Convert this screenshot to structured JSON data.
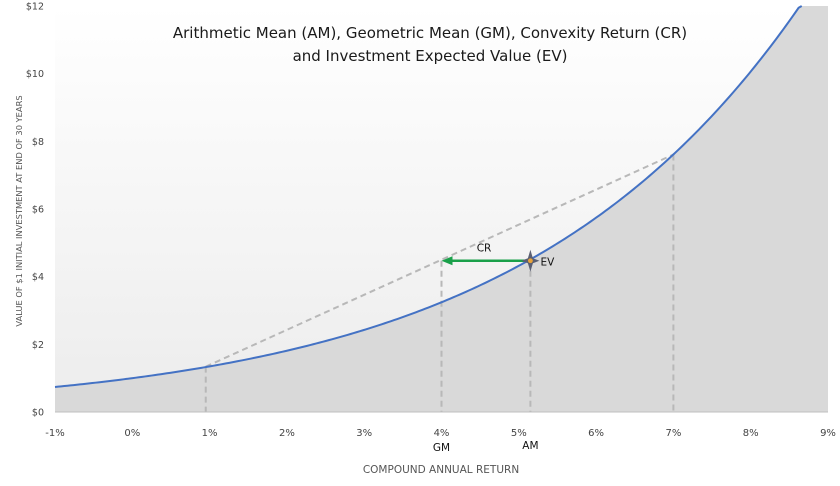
{
  "chart_data": {
    "type": "line",
    "title_lines": [
      "Arithmetic Mean (AM), Geometric Mean (GM), Convexity Return (CR)",
      "and Investment Expected Value (EV)"
    ],
    "xlabel": "COMPOUND ANNUAL RETURN",
    "ylabel": "VALUE OF $1 INITIAL INVESTMENT AT END OF 30 YEARS",
    "xlim": [
      -1,
      9
    ],
    "ylim": [
      0,
      12
    ],
    "x_ticks": [
      -1,
      0,
      1,
      2,
      3,
      4,
      5,
      6,
      7,
      8,
      9
    ],
    "x_tick_labels": [
      "-1%",
      "0%",
      "1%",
      "2%",
      "3%",
      "4%",
      "5%",
      "6%",
      "7%",
      "8%",
      "9%"
    ],
    "y_ticks": [
      0,
      2,
      4,
      6,
      8,
      10,
      12
    ],
    "y_tick_labels": [
      "$0",
      "$2",
      "$4",
      "$6",
      "$8",
      "$10",
      "$12"
    ],
    "curve": {
      "years": 30,
      "x": [
        -1,
        -0.5,
        0,
        0.5,
        1,
        1.5,
        2,
        2.5,
        3,
        3.5,
        4,
        4.5,
        5,
        5.5,
        6,
        6.5,
        7,
        7.5,
        8,
        8.5,
        8.66
      ],
      "y": [
        0.74,
        0.86,
        1.0,
        1.16,
        1.35,
        1.56,
        1.81,
        2.1,
        2.43,
        2.81,
        3.24,
        3.75,
        4.32,
        4.98,
        5.74,
        6.61,
        7.61,
        8.75,
        10.06,
        11.56,
        12.0
      ]
    },
    "chord": {
      "x": [
        0.95,
        7
      ],
      "y": [
        1.34,
        7.61
      ]
    },
    "dashed_verticals": [
      {
        "x": 0.95,
        "y": 1.34
      },
      {
        "x": 4,
        "y": 4.47
      },
      {
        "x": 5.15,
        "y": 4.47
      },
      {
        "x": 7,
        "y": 7.61
      }
    ],
    "arrow": {
      "from": {
        "x": 5.15,
        "y": 4.47
      },
      "to": {
        "x": 4,
        "y": 4.47
      },
      "color": "#1aa04a"
    },
    "ev_point": {
      "x": 5.15,
      "y": 4.47
    },
    "annotations": {
      "cr": {
        "text": "CR",
        "x": 4.55,
        "y": 4.75
      },
      "ev": {
        "text": "EV",
        "x": 5.28,
        "y": 4.45
      },
      "gm": {
        "text": "GM",
        "x": 4.0
      },
      "am": {
        "text": "AM",
        "x": 5.15
      }
    },
    "colors": {
      "curve": "#4472c4",
      "dashed": "#b8b8b8",
      "fill_under": "#d9d9d9",
      "background_top": "#ffffff",
      "background_bottom": "#ececec"
    },
    "grid": false
  }
}
